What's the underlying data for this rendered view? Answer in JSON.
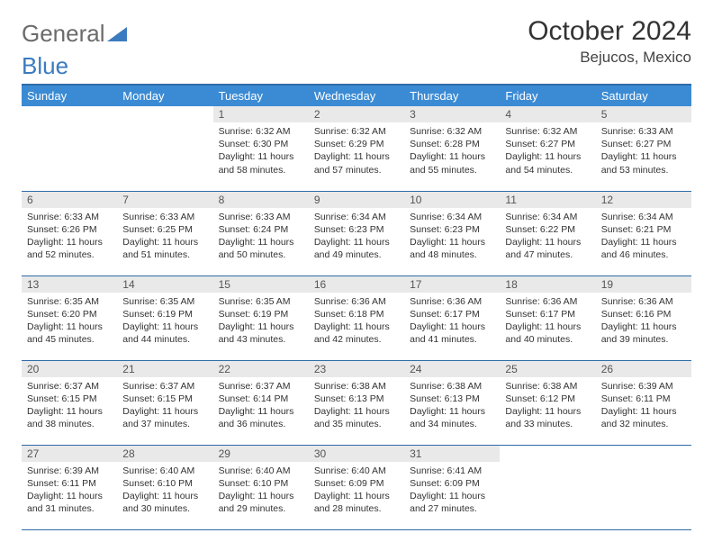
{
  "logo": {
    "part1": "General",
    "part2": "Blue"
  },
  "title": "October 2024",
  "location": "Bejucos, Mexico",
  "colors": {
    "header_bg": "#3b8bd4",
    "header_text": "#ffffff",
    "border": "#2e6ca8",
    "daynum_bg": "#e9e9e9",
    "text": "#333333"
  },
  "dow": [
    "Sunday",
    "Monday",
    "Tuesday",
    "Wednesday",
    "Thursday",
    "Friday",
    "Saturday"
  ],
  "weeks": [
    [
      {
        "n": "",
        "sr": "",
        "ss": "",
        "dl": ""
      },
      {
        "n": "",
        "sr": "",
        "ss": "",
        "dl": ""
      },
      {
        "n": "1",
        "sr": "Sunrise: 6:32 AM",
        "ss": "Sunset: 6:30 PM",
        "dl": "Daylight: 11 hours and 58 minutes."
      },
      {
        "n": "2",
        "sr": "Sunrise: 6:32 AM",
        "ss": "Sunset: 6:29 PM",
        "dl": "Daylight: 11 hours and 57 minutes."
      },
      {
        "n": "3",
        "sr": "Sunrise: 6:32 AM",
        "ss": "Sunset: 6:28 PM",
        "dl": "Daylight: 11 hours and 55 minutes."
      },
      {
        "n": "4",
        "sr": "Sunrise: 6:32 AM",
        "ss": "Sunset: 6:27 PM",
        "dl": "Daylight: 11 hours and 54 minutes."
      },
      {
        "n": "5",
        "sr": "Sunrise: 6:33 AM",
        "ss": "Sunset: 6:27 PM",
        "dl": "Daylight: 11 hours and 53 minutes."
      }
    ],
    [
      {
        "n": "6",
        "sr": "Sunrise: 6:33 AM",
        "ss": "Sunset: 6:26 PM",
        "dl": "Daylight: 11 hours and 52 minutes."
      },
      {
        "n": "7",
        "sr": "Sunrise: 6:33 AM",
        "ss": "Sunset: 6:25 PM",
        "dl": "Daylight: 11 hours and 51 minutes."
      },
      {
        "n": "8",
        "sr": "Sunrise: 6:33 AM",
        "ss": "Sunset: 6:24 PM",
        "dl": "Daylight: 11 hours and 50 minutes."
      },
      {
        "n": "9",
        "sr": "Sunrise: 6:34 AM",
        "ss": "Sunset: 6:23 PM",
        "dl": "Daylight: 11 hours and 49 minutes."
      },
      {
        "n": "10",
        "sr": "Sunrise: 6:34 AM",
        "ss": "Sunset: 6:23 PM",
        "dl": "Daylight: 11 hours and 48 minutes."
      },
      {
        "n": "11",
        "sr": "Sunrise: 6:34 AM",
        "ss": "Sunset: 6:22 PM",
        "dl": "Daylight: 11 hours and 47 minutes."
      },
      {
        "n": "12",
        "sr": "Sunrise: 6:34 AM",
        "ss": "Sunset: 6:21 PM",
        "dl": "Daylight: 11 hours and 46 minutes."
      }
    ],
    [
      {
        "n": "13",
        "sr": "Sunrise: 6:35 AM",
        "ss": "Sunset: 6:20 PM",
        "dl": "Daylight: 11 hours and 45 minutes."
      },
      {
        "n": "14",
        "sr": "Sunrise: 6:35 AM",
        "ss": "Sunset: 6:19 PM",
        "dl": "Daylight: 11 hours and 44 minutes."
      },
      {
        "n": "15",
        "sr": "Sunrise: 6:35 AM",
        "ss": "Sunset: 6:19 PM",
        "dl": "Daylight: 11 hours and 43 minutes."
      },
      {
        "n": "16",
        "sr": "Sunrise: 6:36 AM",
        "ss": "Sunset: 6:18 PM",
        "dl": "Daylight: 11 hours and 42 minutes."
      },
      {
        "n": "17",
        "sr": "Sunrise: 6:36 AM",
        "ss": "Sunset: 6:17 PM",
        "dl": "Daylight: 11 hours and 41 minutes."
      },
      {
        "n": "18",
        "sr": "Sunrise: 6:36 AM",
        "ss": "Sunset: 6:17 PM",
        "dl": "Daylight: 11 hours and 40 minutes."
      },
      {
        "n": "19",
        "sr": "Sunrise: 6:36 AM",
        "ss": "Sunset: 6:16 PM",
        "dl": "Daylight: 11 hours and 39 minutes."
      }
    ],
    [
      {
        "n": "20",
        "sr": "Sunrise: 6:37 AM",
        "ss": "Sunset: 6:15 PM",
        "dl": "Daylight: 11 hours and 38 minutes."
      },
      {
        "n": "21",
        "sr": "Sunrise: 6:37 AM",
        "ss": "Sunset: 6:15 PM",
        "dl": "Daylight: 11 hours and 37 minutes."
      },
      {
        "n": "22",
        "sr": "Sunrise: 6:37 AM",
        "ss": "Sunset: 6:14 PM",
        "dl": "Daylight: 11 hours and 36 minutes."
      },
      {
        "n": "23",
        "sr": "Sunrise: 6:38 AM",
        "ss": "Sunset: 6:13 PM",
        "dl": "Daylight: 11 hours and 35 minutes."
      },
      {
        "n": "24",
        "sr": "Sunrise: 6:38 AM",
        "ss": "Sunset: 6:13 PM",
        "dl": "Daylight: 11 hours and 34 minutes."
      },
      {
        "n": "25",
        "sr": "Sunrise: 6:38 AM",
        "ss": "Sunset: 6:12 PM",
        "dl": "Daylight: 11 hours and 33 minutes."
      },
      {
        "n": "26",
        "sr": "Sunrise: 6:39 AM",
        "ss": "Sunset: 6:11 PM",
        "dl": "Daylight: 11 hours and 32 minutes."
      }
    ],
    [
      {
        "n": "27",
        "sr": "Sunrise: 6:39 AM",
        "ss": "Sunset: 6:11 PM",
        "dl": "Daylight: 11 hours and 31 minutes."
      },
      {
        "n": "28",
        "sr": "Sunrise: 6:40 AM",
        "ss": "Sunset: 6:10 PM",
        "dl": "Daylight: 11 hours and 30 minutes."
      },
      {
        "n": "29",
        "sr": "Sunrise: 6:40 AM",
        "ss": "Sunset: 6:10 PM",
        "dl": "Daylight: 11 hours and 29 minutes."
      },
      {
        "n": "30",
        "sr": "Sunrise: 6:40 AM",
        "ss": "Sunset: 6:09 PM",
        "dl": "Daylight: 11 hours and 28 minutes."
      },
      {
        "n": "31",
        "sr": "Sunrise: 6:41 AM",
        "ss": "Sunset: 6:09 PM",
        "dl": "Daylight: 11 hours and 27 minutes."
      },
      {
        "n": "",
        "sr": "",
        "ss": "",
        "dl": ""
      },
      {
        "n": "",
        "sr": "",
        "ss": "",
        "dl": ""
      }
    ]
  ]
}
